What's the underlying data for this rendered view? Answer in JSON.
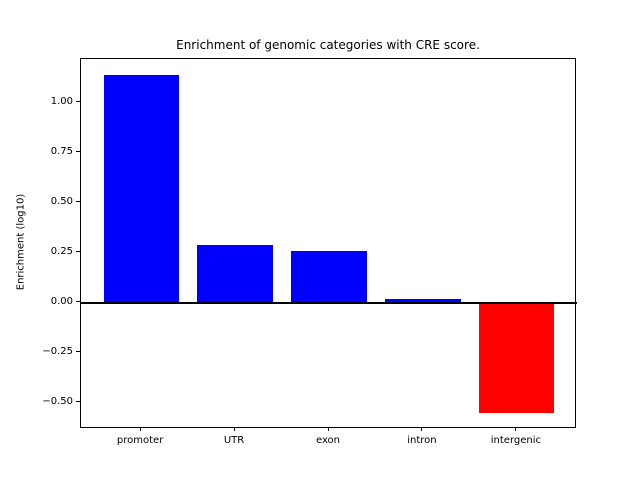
{
  "chart_data": {
    "type": "bar",
    "title": "Enrichment of genomic categories with CRE score.",
    "xlabel": "",
    "ylabel": "Enrichment (log10)",
    "categories": [
      "promoter",
      "UTR",
      "exon",
      "intron",
      "intergenic"
    ],
    "values": [
      1.14,
      0.29,
      0.26,
      0.02,
      -0.55
    ],
    "bar_colors": [
      "#0000ff",
      "#0000ff",
      "#0000ff",
      "#0000ff",
      "#ff0000"
    ],
    "positive_color": "#0000ff",
    "negative_color": "#ff0000",
    "bar_width": 0.8,
    "xlim": [
      -0.64,
      4.64
    ],
    "ylim": [
      -0.63,
      1.22
    ],
    "yticks": [
      1.0,
      0.75,
      0.5,
      0.25,
      0.0,
      -0.25,
      -0.5
    ],
    "ytick_labels": [
      "1.00",
      "0.75",
      "0.50",
      "0.25",
      "0.00",
      "−0.25",
      "−0.50"
    ],
    "zero_line": true,
    "grid": false,
    "legend": null,
    "plot_background": "#ffffff"
  }
}
